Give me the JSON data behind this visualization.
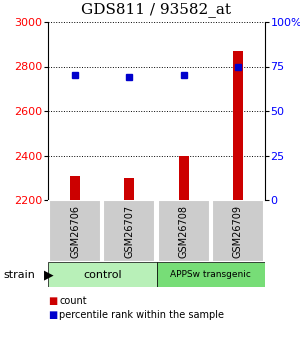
{
  "title": "GDS811 / 93582_at",
  "samples": [
    "GSM26706",
    "GSM26707",
    "GSM26708",
    "GSM26709"
  ],
  "counts": [
    2310,
    2300,
    2400,
    2870
  ],
  "percentiles": [
    70,
    69,
    70,
    75
  ],
  "group_labels": [
    "control",
    "APPSw transgenic"
  ],
  "ylim_left": [
    2200,
    3000
  ],
  "ylim_right": [
    0,
    100
  ],
  "yticks_left": [
    2200,
    2400,
    2600,
    2800,
    3000
  ],
  "yticks_right": [
    0,
    25,
    50,
    75,
    100
  ],
  "bar_color": "#cc0000",
  "dot_color": "#0000cc",
  "legend_red_label": "count",
  "legend_blue_label": "percentile rank within the sample",
  "strain_label": "strain",
  "background_color": "#ffffff",
  "sample_box_color": "#cccccc",
  "group_color_1": "#b8f0b8",
  "group_color_2": "#77dd77",
  "title_fontsize": 11,
  "tick_fontsize": 8,
  "legend_fontsize": 7.5
}
